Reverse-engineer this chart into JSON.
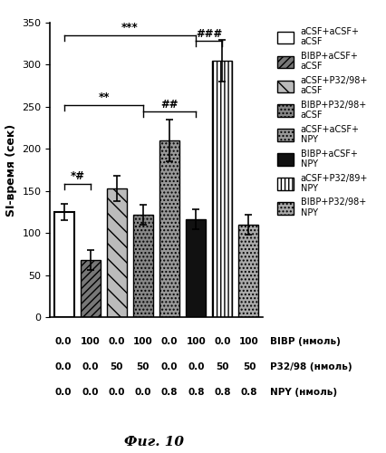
{
  "ylabel": "SI-время (сек)",
  "ylim": [
    0,
    350
  ],
  "yticks": [
    0,
    50,
    100,
    150,
    200,
    250,
    300,
    350
  ],
  "bar_values": [
    125,
    68,
    153,
    122,
    210,
    116,
    305,
    110
  ],
  "bar_errors": [
    10,
    12,
    15,
    12,
    25,
    12,
    25,
    12
  ],
  "BIBP_row": [
    "0.0",
    "100",
    "0.0",
    "100",
    "0.0",
    "100",
    "0.0",
    "100"
  ],
  "P32_row": [
    "0.0",
    "0.0",
    "50",
    "50",
    "0.0",
    "0.0",
    "50",
    "50"
  ],
  "NPY_row": [
    "0.0",
    "0.0",
    "0.0",
    "0.0",
    "0.8",
    "0.8",
    "0.8",
    "0.8"
  ],
  "BIBP_label": "BIBP (нмоль)",
  "P32_label": "P32/98 (нмоль)",
  "NPY_label": "NPY (нмоль)",
  "fig_label": "Фиг. 10",
  "bar_configs": [
    {
      "fc": "white",
      "hatch": "",
      "lw": 1.5
    },
    {
      "fc": "#777777",
      "hatch": "////",
      "lw": 1.0
    },
    {
      "fc": "#bbbbbb",
      "hatch": "\\\\",
      "lw": 1.0
    },
    {
      "fc": "#888888",
      "hatch": "....",
      "lw": 1.0
    },
    {
      "fc": "#999999",
      "hatch": "....",
      "lw": 1.0
    },
    {
      "fc": "#111111",
      "hatch": "",
      "lw": 1.0
    },
    {
      "fc": "white",
      "hatch": "||||",
      "lw": 1.0
    },
    {
      "fc": "#aaaaaa",
      "hatch": "....",
      "lw": 1.0
    }
  ],
  "legend_configs": [
    {
      "fc": "white",
      "hatch": "",
      "label": "aCSF+aCSF+\naCSF"
    },
    {
      "fc": "#777777",
      "hatch": "////",
      "label": "BIBP+aCSF+\naCSF"
    },
    {
      "fc": "#bbbbbb",
      "hatch": "\\\\",
      "label": "aCSF+P32/98+\naCSF"
    },
    {
      "fc": "#888888",
      "hatch": "....",
      "label": "BIBP+P32/98+\naCSF"
    },
    {
      "fc": "#999999",
      "hatch": "....",
      "label": "aCSF+aCSF+\nNPY"
    },
    {
      "fc": "#111111",
      "hatch": "",
      "label": "BIBP+aCSF+\nNPY"
    },
    {
      "fc": "white",
      "hatch": "||||",
      "label": "aCSF+P32/89+\nNPY"
    },
    {
      "fc": "#aaaaaa",
      "hatch": "....",
      "label": "BIBP+P32/98+\nNPY"
    }
  ]
}
